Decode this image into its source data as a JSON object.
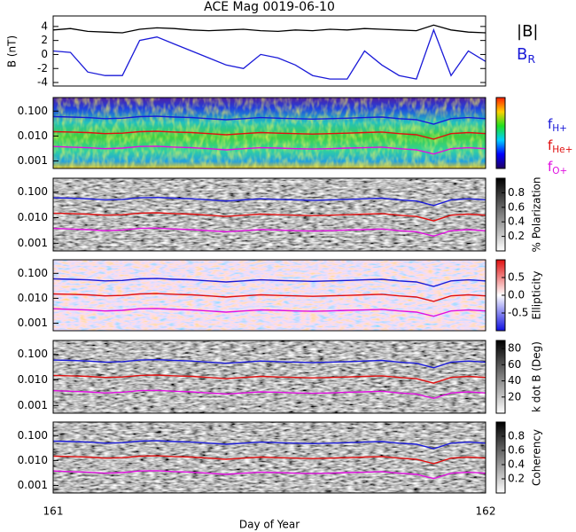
{
  "chart_data": [
    {
      "type": "line",
      "title": "ACE Mag 0019-06-10",
      "y_label": "B (nT)",
      "x_label": "Day of Year",
      "x": [
        161.0,
        161.04,
        161.08,
        161.12,
        161.16,
        161.2,
        161.24,
        161.28,
        161.32,
        161.36,
        161.4,
        161.44,
        161.48,
        161.52,
        161.56,
        161.6,
        161.64,
        161.68,
        161.72,
        161.76,
        161.8,
        161.84,
        161.88,
        161.92,
        161.96,
        162.0
      ],
      "xlim": [
        161,
        162
      ],
      "xticks": [
        161,
        162
      ],
      "ylim": [
        -4.5,
        5.5
      ],
      "yticks": [
        -4,
        -2,
        0,
        2,
        4
      ],
      "series": [
        {
          "name": "|B|",
          "color": "#000000",
          "values": [
            3.5,
            3.7,
            3.3,
            3.2,
            3.1,
            3.6,
            3.8,
            3.7,
            3.5,
            3.4,
            3.5,
            3.6,
            3.4,
            3.3,
            3.5,
            3.4,
            3.6,
            3.5,
            3.7,
            3.6,
            3.5,
            3.4,
            4.2,
            3.5,
            3.2,
            3.1
          ]
        },
        {
          "name": "B",
          "subscript": "R",
          "color": "#1a1ad8",
          "values": [
            0.5,
            0.3,
            -2.5,
            -3,
            -3,
            2,
            2.5,
            1.5,
            0.5,
            -0.5,
            -1.5,
            -2,
            0,
            -0.5,
            -1.5,
            -3,
            -3.5,
            -3.5,
            0.5,
            -1.5,
            -3,
            -3.5,
            3.5,
            -3,
            0.5,
            -1
          ]
        }
      ]
    },
    {
      "type": "spectrogram",
      "log_y": true,
      "ylim": [
        0.0005,
        0.35
      ],
      "colormap": "jet",
      "yticks": [
        {
          "value": 0.1,
          "label": "0.100"
        },
        {
          "value": 0.01,
          "label": "0.010"
        },
        {
          "value": 0.001,
          "label": "0.001"
        }
      ],
      "series": [
        {
          "name": "f",
          "subscript": "H+",
          "color": "#1a1ad8",
          "values": [
            0.06,
            0.058,
            0.055,
            0.05,
            0.052,
            0.06,
            0.062,
            0.058,
            0.055,
            0.05,
            0.045,
            0.05,
            0.055,
            0.052,
            0.05,
            0.048,
            0.05,
            0.052,
            0.055,
            0.058,
            0.05,
            0.045,
            0.03,
            0.05,
            0.055,
            0.05
          ]
        },
        {
          "name": "f",
          "subscript": "He+",
          "color": "#e01010",
          "values": [
            0.015,
            0.0145,
            0.0138,
            0.0125,
            0.013,
            0.015,
            0.0155,
            0.0145,
            0.0138,
            0.0125,
            0.0112,
            0.0125,
            0.0138,
            0.013,
            0.0125,
            0.012,
            0.0125,
            0.013,
            0.0138,
            0.0145,
            0.0125,
            0.0112,
            0.0075,
            0.0125,
            0.0138,
            0.0125
          ]
        },
        {
          "name": "f",
          "subscript": "O+",
          "color": "#e010e0",
          "values": [
            0.0038,
            0.0036,
            0.0034,
            0.0031,
            0.0033,
            0.0038,
            0.0039,
            0.0036,
            0.0034,
            0.0031,
            0.0028,
            0.0031,
            0.0034,
            0.0033,
            0.0031,
            0.003,
            0.0031,
            0.0033,
            0.0034,
            0.0036,
            0.0031,
            0.0028,
            0.0019,
            0.0031,
            0.0034,
            0.0031
          ]
        }
      ]
    },
    {
      "type": "spectrogram",
      "log_y": true,
      "ylim": [
        0.0005,
        0.35
      ],
      "colormap": "gray",
      "yticks": [
        {
          "value": 0.1,
          "label": "0.100"
        },
        {
          "value": 0.01,
          "label": "0.010"
        },
        {
          "value": 0.001,
          "label": "0.001"
        }
      ],
      "colorbar": {
        "label": "% Polarization",
        "lim": [
          0,
          1
        ],
        "ticks": [
          0.2,
          0.4,
          0.6,
          0.8
        ]
      }
    },
    {
      "type": "spectrogram",
      "log_y": true,
      "ylim": [
        0.0005,
        0.35
      ],
      "colormap": "bwr",
      "yticks": [
        {
          "value": 0.1,
          "label": "0.100"
        },
        {
          "value": 0.01,
          "label": "0.010"
        },
        {
          "value": 0.001,
          "label": "0.001"
        }
      ],
      "colorbar": {
        "label": "Ellipticity",
        "lim": [
          -1,
          1
        ],
        "ticks": [
          -0.5,
          {
            "value": 0,
            "label": "0.0"
          },
          0.5
        ]
      }
    },
    {
      "type": "spectrogram",
      "log_y": true,
      "ylim": [
        0.0005,
        0.35
      ],
      "colormap": "gray",
      "yticks": [
        {
          "value": 0.1,
          "label": "0.100"
        },
        {
          "value": 0.01,
          "label": "0.010"
        },
        {
          "value": 0.001,
          "label": "0.001"
        }
      ],
      "colorbar": {
        "label": "k dot B (Deg)",
        "lim": [
          0,
          90
        ],
        "ticks": [
          20,
          40,
          60,
          80
        ]
      }
    },
    {
      "type": "spectrogram",
      "log_y": true,
      "ylim": [
        0.0005,
        0.35
      ],
      "colormap": "gray",
      "yticks": [
        {
          "value": 0.1,
          "label": "0.100"
        },
        {
          "value": 0.01,
          "label": "0.010"
        },
        {
          "value": 0.001,
          "label": "0.001"
        }
      ],
      "colorbar": {
        "label": "Coherency",
        "lim": [
          0,
          1
        ],
        "ticks": [
          0.2,
          0.4,
          0.6,
          0.8
        ]
      }
    }
  ]
}
